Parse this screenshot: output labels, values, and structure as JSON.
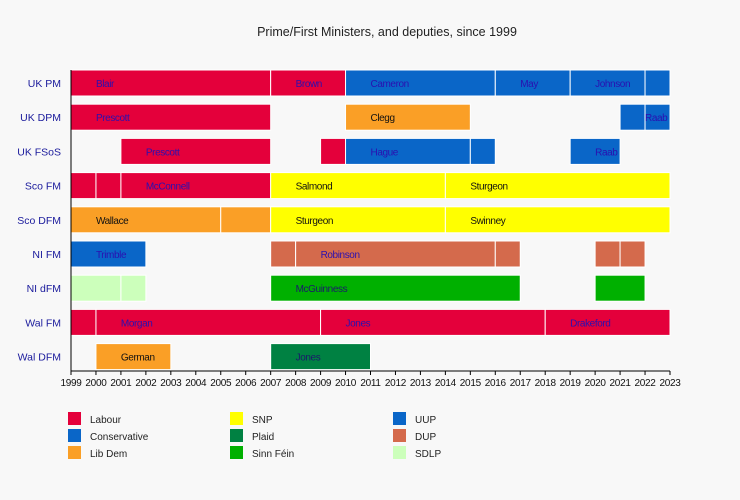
{
  "chart_data": {
    "type": "timeline",
    "title": "Prime/First Ministers, and deputies, since 1999",
    "xlim": [
      1999,
      2023
    ],
    "x_ticks": [
      1999,
      2000,
      2001,
      2002,
      2003,
      2004,
      2005,
      2006,
      2007,
      2008,
      2009,
      2010,
      2011,
      2012,
      2013,
      2014,
      2015,
      2016,
      2017,
      2018,
      2019,
      2020,
      2021,
      2022,
      2023
    ],
    "party_colors": {
      "Labour": "#e4003b",
      "Conservative": "#0a66c8",
      "Lib Dem": "#fa9f26",
      "SNP": "#ffff00",
      "Plaid": "#008142",
      "Sinn Féin": "#00b000",
      "UUP": "#0a66c8",
      "DUP": "#d46a4c",
      "SDLP": "#ccffbb"
    },
    "legend": {
      "placement": "bottom",
      "columns": [
        [
          "Labour",
          "Conservative",
          "Lib Dem"
        ],
        [
          "SNP",
          "Plaid",
          "Sinn Féin"
        ],
        [
          "UUP",
          "DUP",
          "SDLP"
        ]
      ]
    },
    "rows": [
      {
        "label": "UK PM",
        "segments": [
          {
            "start": 1999,
            "end": 2007,
            "party": "Labour",
            "name": "Blair",
            "label_at": 2000
          },
          {
            "start": 2007,
            "end": 2010,
            "party": "Labour",
            "name": "Brown",
            "label_at": 2008
          },
          {
            "start": 2010,
            "end": 2016,
            "party": "Conservative",
            "name": "Cameron",
            "label_at": 2011
          },
          {
            "start": 2016,
            "end": 2019,
            "party": "Conservative",
            "name": "May",
            "label_at": 2017
          },
          {
            "start": 2019,
            "end": 2022,
            "party": "Conservative",
            "name": "Johnson",
            "label_at": 2020
          },
          {
            "start": 2022,
            "end": 2023,
            "party": "Conservative"
          }
        ]
      },
      {
        "label": "UK DPM",
        "segments": [
          {
            "start": 1999,
            "end": 2007,
            "party": "Labour",
            "name": "Prescott",
            "label_at": 2000
          },
          {
            "start": 2010,
            "end": 2015,
            "party": "Lib Dem",
            "name": "Clegg",
            "label_at": 2011
          },
          {
            "start": 2021,
            "end": 2022,
            "party": "Conservative"
          },
          {
            "start": 2022,
            "end": 2023,
            "party": "Conservative",
            "name": "Raab",
            "label_at": 2022
          }
        ]
      },
      {
        "label": "UK FSoS",
        "segments": [
          {
            "start": 2001,
            "end": 2007,
            "party": "Labour",
            "name": "Prescott",
            "label_at": 2002
          },
          {
            "start": 2009,
            "end": 2010,
            "party": "Labour"
          },
          {
            "start": 2010,
            "end": 2015,
            "party": "Conservative",
            "name": "Hague",
            "label_at": 2011
          },
          {
            "start": 2015,
            "end": 2016,
            "party": "Conservative"
          },
          {
            "start": 2019,
            "end": 2021,
            "party": "Conservative",
            "name": "Raab",
            "label_at": 2020
          }
        ]
      },
      {
        "label": "Sco FM",
        "segments": [
          {
            "start": 1999,
            "end": 2000,
            "party": "Labour"
          },
          {
            "start": 2000,
            "end": 2001,
            "party": "Labour"
          },
          {
            "start": 2001,
            "end": 2007,
            "party": "Labour",
            "name": "McConnell",
            "label_at": 2002
          },
          {
            "start": 2007,
            "end": 2014,
            "party": "SNP",
            "name": "Salmond",
            "label_at": 2008
          },
          {
            "start": 2014,
            "end": 2023,
            "party": "SNP",
            "name": "Sturgeon",
            "label_at": 2015
          }
        ]
      },
      {
        "label": "Sco DFM",
        "segments": [
          {
            "start": 1999,
            "end": 2005,
            "party": "Lib Dem",
            "name": "Wallace",
            "label_at": 2000
          },
          {
            "start": 2005,
            "end": 2007,
            "party": "Lib Dem"
          },
          {
            "start": 2007,
            "end": 2014,
            "party": "SNP",
            "name": "Sturgeon",
            "label_at": 2008
          },
          {
            "start": 2014,
            "end": 2023,
            "party": "SNP",
            "name": "Swinney",
            "label_at": 2015
          }
        ]
      },
      {
        "label": "NI FM",
        "segments": [
          {
            "start": 1999,
            "end": 2002,
            "party": "UUP",
            "name": "Trimble",
            "label_at": 2000
          },
          {
            "start": 2007,
            "end": 2008,
            "party": "DUP"
          },
          {
            "start": 2008,
            "end": 2016,
            "party": "DUP",
            "name": "Robinson",
            "label_at": 2009
          },
          {
            "start": 2016,
            "end": 2017,
            "party": "DUP"
          },
          {
            "start": 2020,
            "end": 2021,
            "party": "DUP"
          },
          {
            "start": 2021,
            "end": 2022,
            "party": "DUP"
          }
        ]
      },
      {
        "label": "NI dFM",
        "segments": [
          {
            "start": 1999,
            "end": 2001,
            "party": "SDLP"
          },
          {
            "start": 2001,
            "end": 2002,
            "party": "SDLP"
          },
          {
            "start": 2007,
            "end": 2017,
            "party": "Sinn Féin",
            "name": "McGuinness",
            "label_at": 2008
          },
          {
            "start": 2020,
            "end": 2022,
            "party": "Sinn Féin"
          }
        ]
      },
      {
        "label": "Wal FM",
        "segments": [
          {
            "start": 1999,
            "end": 2000,
            "party": "Labour"
          },
          {
            "start": 2000,
            "end": 2009,
            "party": "Labour",
            "name": "Morgan",
            "label_at": 2001
          },
          {
            "start": 2009,
            "end": 2018,
            "party": "Labour",
            "name": "Jones",
            "label_at": 2010
          },
          {
            "start": 2018,
            "end": 2023,
            "party": "Labour",
            "name": "Drakeford",
            "label_at": 2019
          }
        ]
      },
      {
        "label": "Wal DFM",
        "segments": [
          {
            "start": 2000,
            "end": 2003,
            "party": "Lib Dem",
            "name": "German",
            "label_at": 2001
          },
          {
            "start": 2007,
            "end": 2011,
            "party": "Plaid",
            "name": "Jones",
            "label_at": 2008
          }
        ]
      }
    ]
  }
}
